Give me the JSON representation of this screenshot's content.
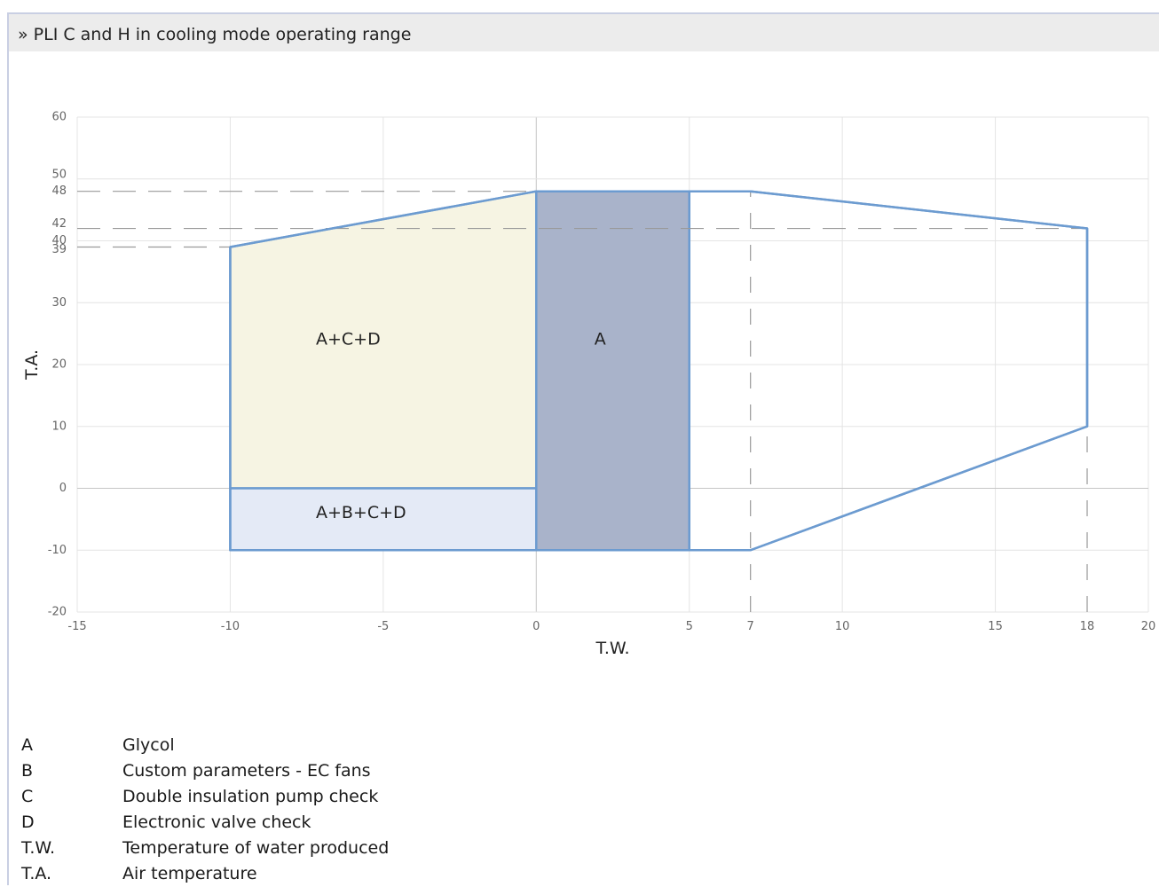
{
  "header": {
    "title": "» PLI C and H in cooling mode operating range"
  },
  "chart_data": {
    "type": "area",
    "xlabel": "T.W.",
    "ylabel": "T.A.",
    "xlim": [
      -15,
      20
    ],
    "ylim": [
      -20,
      60
    ],
    "x_ticks": [
      -15,
      -10,
      -5,
      0,
      5,
      7,
      10,
      15,
      18,
      20
    ],
    "y_ticks": [
      -20,
      -10,
      0,
      10,
      20,
      30,
      39,
      40,
      42,
      48,
      50,
      60
    ],
    "grid": true,
    "regions": [
      {
        "label": "A+C+D",
        "label_at": [
          -7.2,
          24
        ],
        "points": [
          [
            -10,
            39
          ],
          [
            0,
            48
          ],
          [
            0,
            0
          ],
          [
            -10,
            0
          ]
        ],
        "fill": "#f6f4e3"
      },
      {
        "label": "A+B+C+D",
        "label_at": [
          -7.2,
          -4
        ],
        "points": [
          [
            -10,
            0
          ],
          [
            0,
            0
          ],
          [
            0,
            -10
          ],
          [
            -10,
            -10
          ]
        ],
        "fill": "#e4eaf6"
      },
      {
        "label": "A",
        "label_at": [
          1.9,
          24
        ],
        "points": [
          [
            0,
            48
          ],
          [
            5,
            48
          ],
          [
            5,
            -10
          ],
          [
            0,
            -10
          ]
        ],
        "fill": "#a9b3ca"
      },
      {
        "label": "",
        "label_at": null,
        "points": [
          [
            5,
            48
          ],
          [
            7,
            48
          ],
          [
            18,
            42
          ],
          [
            18,
            10
          ],
          [
            7,
            -10
          ],
          [
            5,
            -10
          ]
        ],
        "fill": "none"
      }
    ],
    "outline": {
      "points": [
        [
          -10,
          39
        ],
        [
          0,
          48
        ],
        [
          7,
          48
        ],
        [
          18,
          42
        ],
        [
          18,
          10
        ],
        [
          7,
          -10
        ],
        [
          -10,
          -10
        ]
      ],
      "color": "#6c9bd0"
    },
    "reference_lines": {
      "horizontal": [
        {
          "y": 48,
          "x_to": 0
        },
        {
          "y": 42,
          "x_to": 18
        },
        {
          "y": 39,
          "x_to": -10
        }
      ],
      "vertical": [
        {
          "x": 7,
          "y_from": -20,
          "y_to": 48
        },
        {
          "x": 18,
          "y_from": -20,
          "y_to": 42
        }
      ]
    }
  },
  "legend": [
    {
      "key": "A",
      "text": "Glycol"
    },
    {
      "key": "B",
      "text": "Custom parameters - EC fans"
    },
    {
      "key": "C",
      "text": "Double insulation pump check"
    },
    {
      "key": "D",
      "text": "Electronic valve check"
    },
    {
      "key": "T.W.",
      "text": "Temperature of water produced"
    },
    {
      "key": "T.A.",
      "text": "Air temperature"
    }
  ]
}
